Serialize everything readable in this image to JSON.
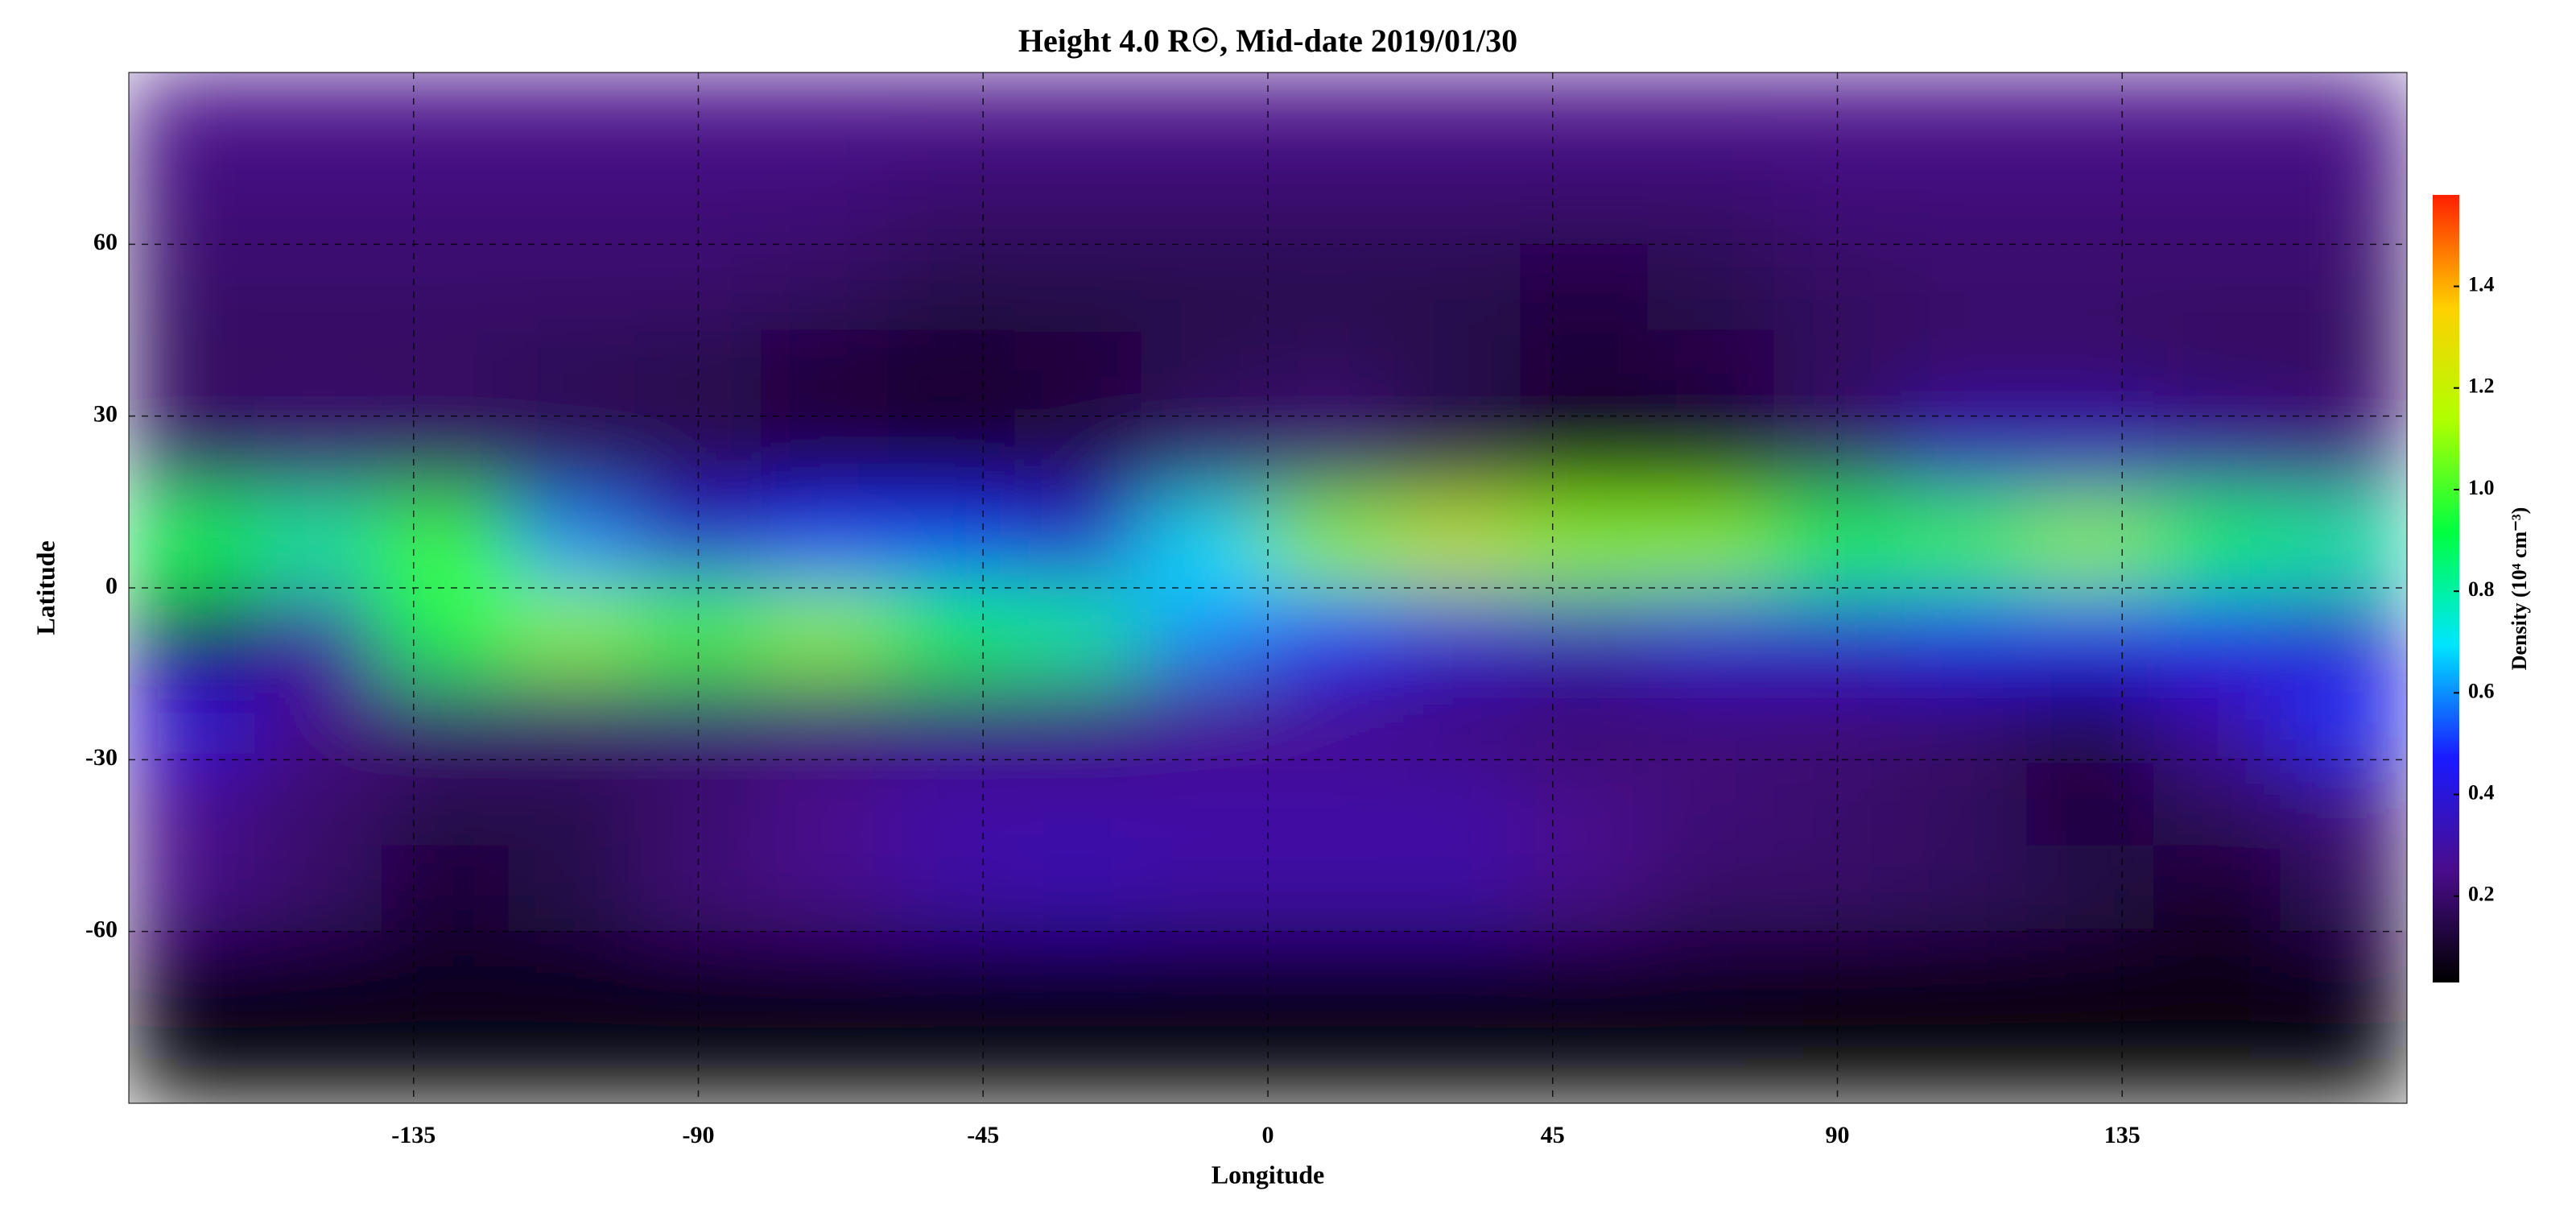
{
  "chart_data": {
    "type": "heatmap",
    "title": "Height 4.0 R☉, Mid-date 2019/01/30",
    "x_label": "Longitude",
    "y_label": "Latitude",
    "colorbar_label": "Density (10⁴ cm⁻³)",
    "xlim": [
      -180,
      180
    ],
    "ylim": [
      -90,
      90
    ],
    "xticks": [
      -135,
      -90,
      -45,
      0,
      45,
      90,
      135
    ],
    "yticks": [
      -60,
      -30,
      0,
      30,
      60
    ],
    "grid": true,
    "clim": [
      0.03,
      1.58
    ],
    "cticks": [
      0.2,
      0.4,
      0.6,
      0.8,
      {
        "value": 1,
        "label": "1.0"
      },
      1.2,
      1.4
    ],
    "colormap": [
      "#000000",
      "#4a0c8c",
      "#1a1aff",
      "#00e5ff",
      "#00ff40",
      "#b0ff00",
      "#ffd000",
      "#ff2000"
    ],
    "x": [
      -170,
      -150,
      -130,
      -110,
      -90,
      -70,
      -50,
      -30,
      -10,
      10,
      30,
      50,
      70,
      90,
      110,
      130,
      150,
      170
    ],
    "y": [
      82.5,
      67.5,
      52.5,
      37.5,
      22.5,
      7.5,
      -7.5,
      -22.5,
      -37.5,
      -52.5,
      -67.5,
      -82.5
    ],
    "z": [
      [
        0.25,
        0.25,
        0.25,
        0.25,
        0.25,
        0.25,
        0.25,
        0.25,
        0.25,
        0.25,
        0.25,
        0.25,
        0.25,
        0.25,
        0.25,
        0.25,
        0.25,
        0.25
      ],
      [
        0.22,
        0.22,
        0.22,
        0.22,
        0.22,
        0.22,
        0.2,
        0.2,
        0.2,
        0.2,
        0.2,
        0.2,
        0.2,
        0.22,
        0.22,
        0.22,
        0.22,
        0.22
      ],
      [
        0.2,
        0.2,
        0.2,
        0.2,
        0.2,
        0.18,
        0.15,
        0.15,
        0.15,
        0.15,
        0.15,
        0.13,
        0.15,
        0.18,
        0.2,
        0.2,
        0.2,
        0.2
      ],
      [
        0.18,
        0.18,
        0.18,
        0.16,
        0.15,
        0.12,
        0.1,
        0.12,
        0.16,
        0.18,
        0.15,
        0.12,
        0.14,
        0.18,
        0.2,
        0.2,
        0.18,
        0.18
      ],
      [
        0.2,
        0.22,
        0.2,
        0.18,
        0.16,
        0.14,
        0.12,
        0.15,
        0.2,
        0.22,
        0.15,
        0.05,
        0.08,
        0.2,
        0.35,
        0.35,
        0.3,
        0.25
      ],
      [
        0.9,
        0.8,
        1.0,
        0.6,
        0.4,
        0.5,
        0.5,
        0.4,
        0.7,
        1.1,
        1.2,
        1.1,
        1.1,
        0.9,
        1.0,
        1.1,
        0.9,
        0.8
      ],
      [
        0.1,
        0.3,
        0.9,
        1.1,
        1.0,
        1.1,
        0.9,
        0.8,
        0.6,
        0.5,
        0.4,
        0.35,
        0.4,
        0.4,
        0.45,
        0.45,
        0.45,
        0.35
      ],
      [
        0.4,
        0.25,
        0.22,
        0.22,
        0.22,
        0.22,
        0.22,
        0.22,
        0.25,
        0.25,
        0.22,
        0.2,
        0.22,
        0.22,
        0.2,
        0.15,
        0.3,
        0.5
      ],
      [
        0.25,
        0.2,
        0.15,
        0.15,
        0.2,
        0.25,
        0.3,
        0.3,
        0.3,
        0.3,
        0.3,
        0.25,
        0.22,
        0.2,
        0.18,
        0.12,
        0.18,
        0.22
      ],
      [
        0.25,
        0.2,
        0.12,
        0.15,
        0.22,
        0.25,
        0.3,
        0.32,
        0.3,
        0.3,
        0.3,
        0.25,
        0.2,
        0.2,
        0.18,
        0.15,
        0.1,
        0.18
      ],
      [
        0.08,
        0.08,
        0.08,
        0.08,
        0.08,
        0.08,
        0.08,
        0.08,
        0.08,
        0.08,
        0.08,
        0.08,
        0.08,
        0.06,
        0.06,
        0.06,
        0.06,
        0.08
      ],
      [
        0.04,
        0.04,
        0.04,
        0.04,
        0.04,
        0.04,
        0.04,
        0.04,
        0.04,
        0.04,
        0.04,
        0.04,
        0.04,
        0.04,
        0.04,
        0.04,
        0.04,
        0.04
      ]
    ]
  }
}
